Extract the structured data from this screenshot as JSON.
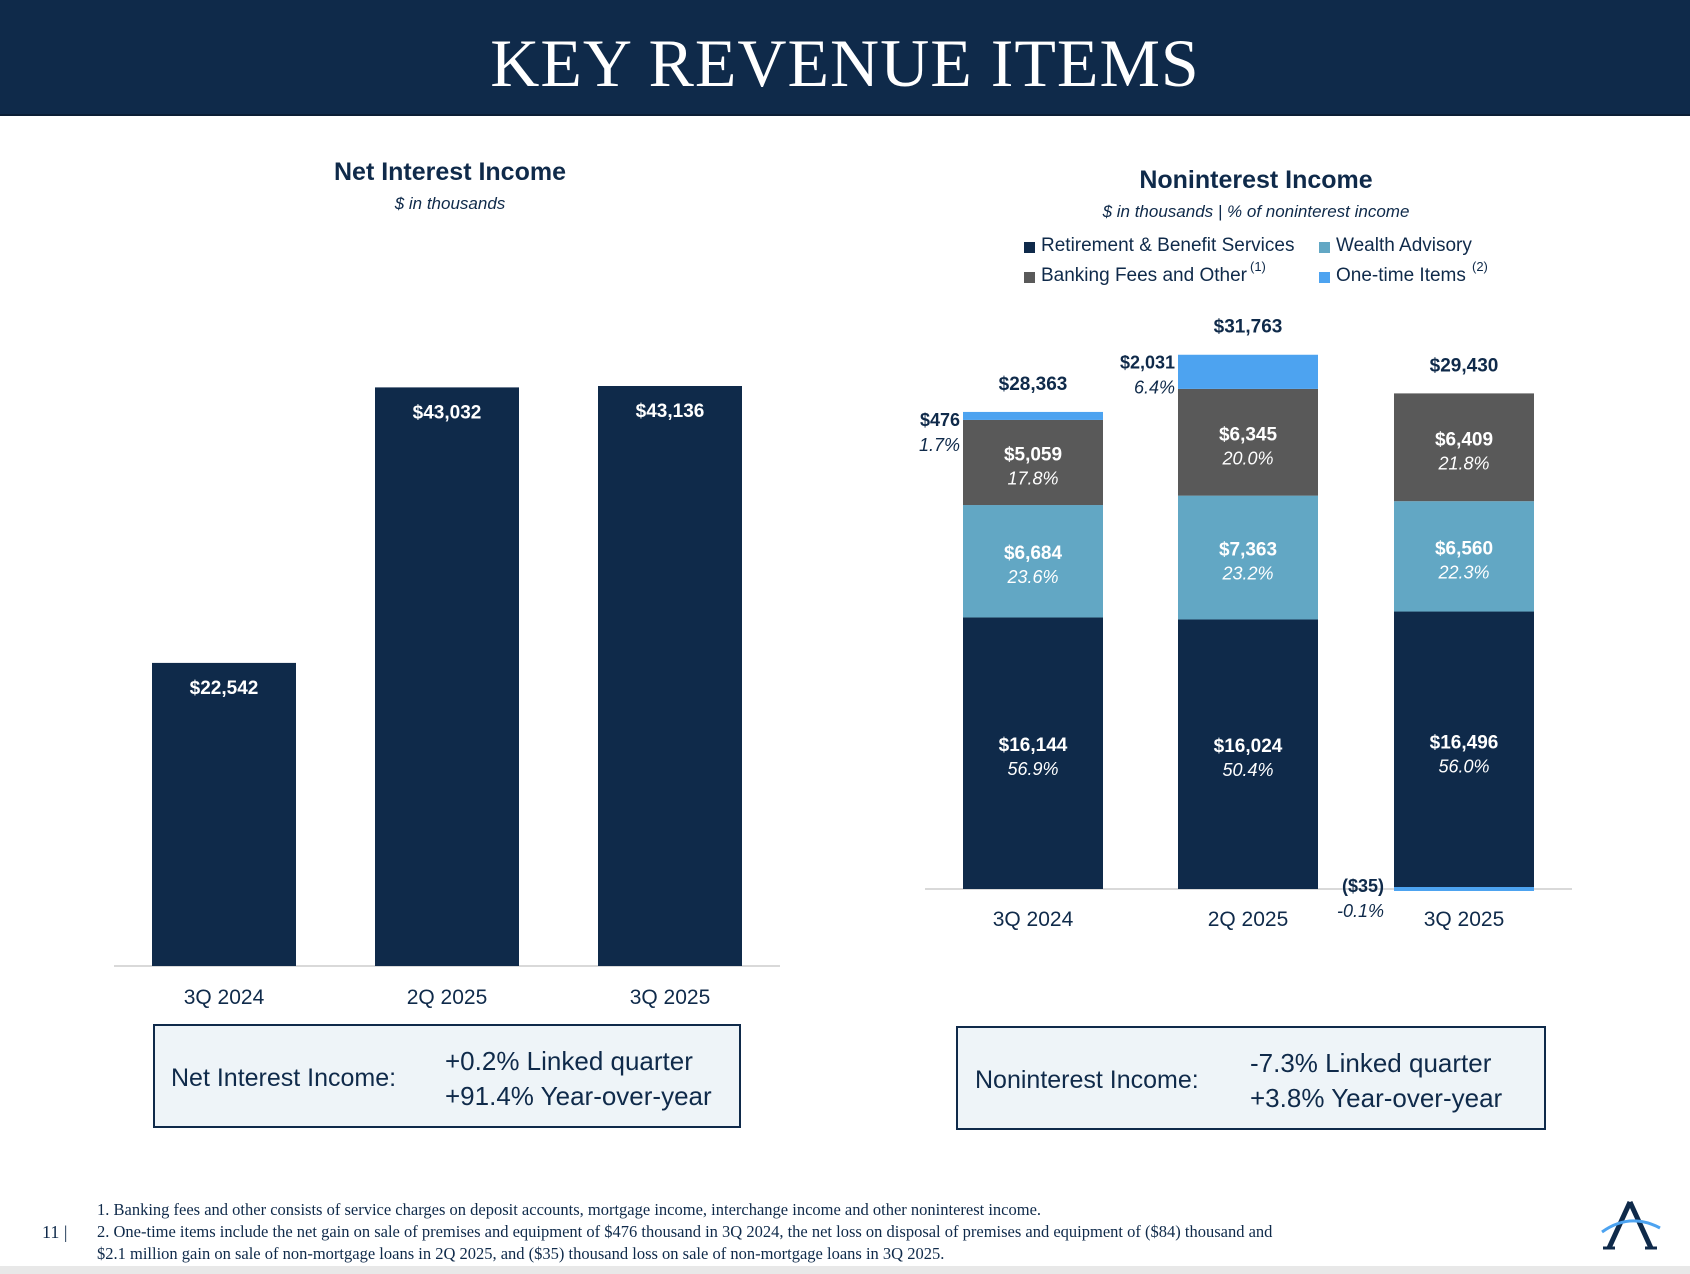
{
  "page": {
    "title": "KEY REVENUE ITEMS",
    "page_number": "11 |",
    "footnotes": [
      "1. Banking fees and other consists of service charges on deposit accounts, mortgage income, interchange income and other noninterest income.",
      "2. One-time items include the net gain on sale of premises and equipment of $476 thousand in 3Q 2024, the net loss on disposal of premises and equipment of ($84) thousand and",
      "$2.1 million gain on sale of non-mortgage loans in 2Q 2025, and ($35) thousand loss on sale of non-mortgage loans in 3Q 2025."
    ],
    "logo": "A"
  },
  "colors": {
    "navy": "#0f2a4a",
    "wealth": "#62a7c4",
    "banking": "#595959",
    "one_time": "#4da3f0",
    "header_bg": "#0f2a4a",
    "box_bg": "#eef4f8"
  },
  "summary_left": {
    "label": "Net Interest Income:",
    "line1": "+0.2% Linked quarter",
    "line2": "+91.4% Year-over-year"
  },
  "summary_right": {
    "label": "Noninterest Income:",
    "line1": "-7.3% Linked quarter",
    "line2": "+3.8% Year-over-year"
  },
  "chart_data": [
    {
      "type": "bar",
      "title": "Net Interest Income",
      "subtitle": "$ in thousands",
      "categories": [
        "3Q 2024",
        "2Q 2025",
        "3Q 2025"
      ],
      "values": [
        22542,
        43032,
        43136
      ],
      "value_labels": [
        "$22,542",
        "$43,032",
        "$43,136"
      ],
      "ylim": [
        0,
        50000
      ],
      "grid": false
    },
    {
      "type": "bar",
      "stacked": true,
      "title": "Noninterest Income",
      "subtitle": "$ in thousands | % of noninterest income",
      "categories": [
        "3Q 2024",
        "2Q 2025",
        "3Q 2025"
      ],
      "legend": [
        {
          "label": "Retirement & Benefit Services",
          "sup": "",
          "color": "#0f2a4a"
        },
        {
          "label": "Wealth Advisory",
          "sup": "",
          "color": "#62a7c4"
        },
        {
          "label": "Banking Fees and Other",
          "sup": "(1)",
          "color": "#595959"
        },
        {
          "label": "One-time Items",
          "sup": "(2)",
          "color": "#4da3f0"
        }
      ],
      "legend_position": "top",
      "series": [
        {
          "name": "Retirement & Benefit Services",
          "values": [
            16144,
            16024,
            16496
          ],
          "labels": [
            "$16,144",
            "$16,024",
            "$16,496"
          ],
          "pcts": [
            "56.9%",
            "50.4%",
            "56.0%"
          ]
        },
        {
          "name": "Wealth Advisory",
          "values": [
            6684,
            7363,
            6560
          ],
          "labels": [
            "$6,684",
            "$7,363",
            "$6,560"
          ],
          "pcts": [
            "23.6%",
            "23.2%",
            "22.3%"
          ]
        },
        {
          "name": "Banking Fees and Other",
          "values": [
            5059,
            6345,
            6409
          ],
          "labels": [
            "$5,059",
            "$6,345",
            "$6,409"
          ],
          "pcts": [
            "17.8%",
            "20.0%",
            "21.8%"
          ]
        },
        {
          "name": "One-time Items",
          "values": [
            476,
            2031,
            -35
          ],
          "labels": [
            "$476",
            "$2,031",
            "($35)"
          ],
          "pcts": [
            "1.7%",
            "6.4%",
            "-0.1%"
          ]
        }
      ],
      "totals": [
        28363,
        31763,
        29430
      ],
      "total_labels": [
        "$28,363",
        "$31,763",
        "$29,430"
      ],
      "grid": false
    }
  ]
}
